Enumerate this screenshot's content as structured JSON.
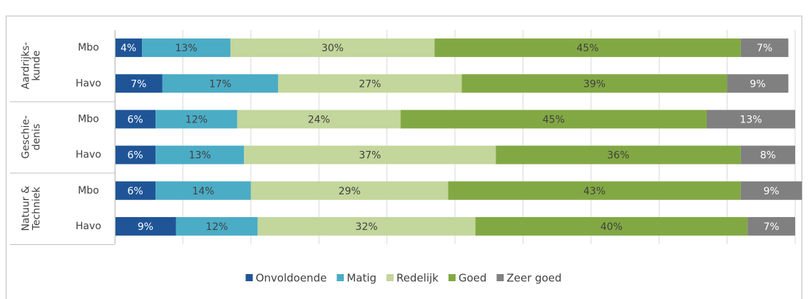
{
  "chart_data": {
    "type": "stacked-bar-horizontal",
    "groups": [
      {
        "name": "Aardrijks-\nkunde",
        "categories": [
          "Mbo",
          "Havo"
        ]
      },
      {
        "name": "Geschie-\ndenis",
        "categories": [
          "Mbo",
          "Havo"
        ]
      },
      {
        "name": "Natuur &\nTechniek",
        "categories": [
          "Mbo",
          "Havo"
        ]
      }
    ],
    "series": [
      {
        "name": "Onvoldoende",
        "color": "#1f5597",
        "label_color": "#ffffff",
        "values": [
          4,
          7,
          6,
          6,
          6,
          9
        ],
        "value_labels": [
          "4%",
          "7%",
          "6%",
          "6%",
          "6%",
          "9%"
        ]
      },
      {
        "name": "Matig",
        "color": "#4bacc6",
        "label_color": "#404040",
        "values": [
          13,
          17,
          12,
          13,
          14,
          12
        ],
        "value_labels": [
          "13%",
          "17%",
          "12%",
          "13%",
          "14%",
          "12%"
        ]
      },
      {
        "name": "Redelijk",
        "color": "#c3d69b",
        "label_color": "#404040",
        "values": [
          30,
          27,
          24,
          37,
          29,
          32
        ],
        "value_labels": [
          "30%",
          "27%",
          "24%",
          "37%",
          "29%",
          "32%"
        ]
      },
      {
        "name": "Goed",
        "color": "#82a844",
        "label_color": "#404040",
        "values": [
          45,
          39,
          45,
          36,
          43,
          40
        ],
        "value_labels": [
          "45%",
          "39%",
          "45%",
          "36%",
          "43%",
          "40%"
        ]
      },
      {
        "name": "Zeer goed",
        "color": "#808080",
        "label_color": "#ffffff",
        "values": [
          7,
          9,
          13,
          8,
          9,
          7
        ],
        "value_labels": [
          "7%",
          "9%",
          "13%",
          "8%",
          "9%",
          "7%"
        ]
      }
    ],
    "xlim": [
      0,
      100
    ],
    "xticks": [
      0,
      10,
      20,
      30,
      40,
      50,
      60,
      70,
      80,
      90,
      100
    ],
    "grid": true,
    "legend": "bottom"
  }
}
